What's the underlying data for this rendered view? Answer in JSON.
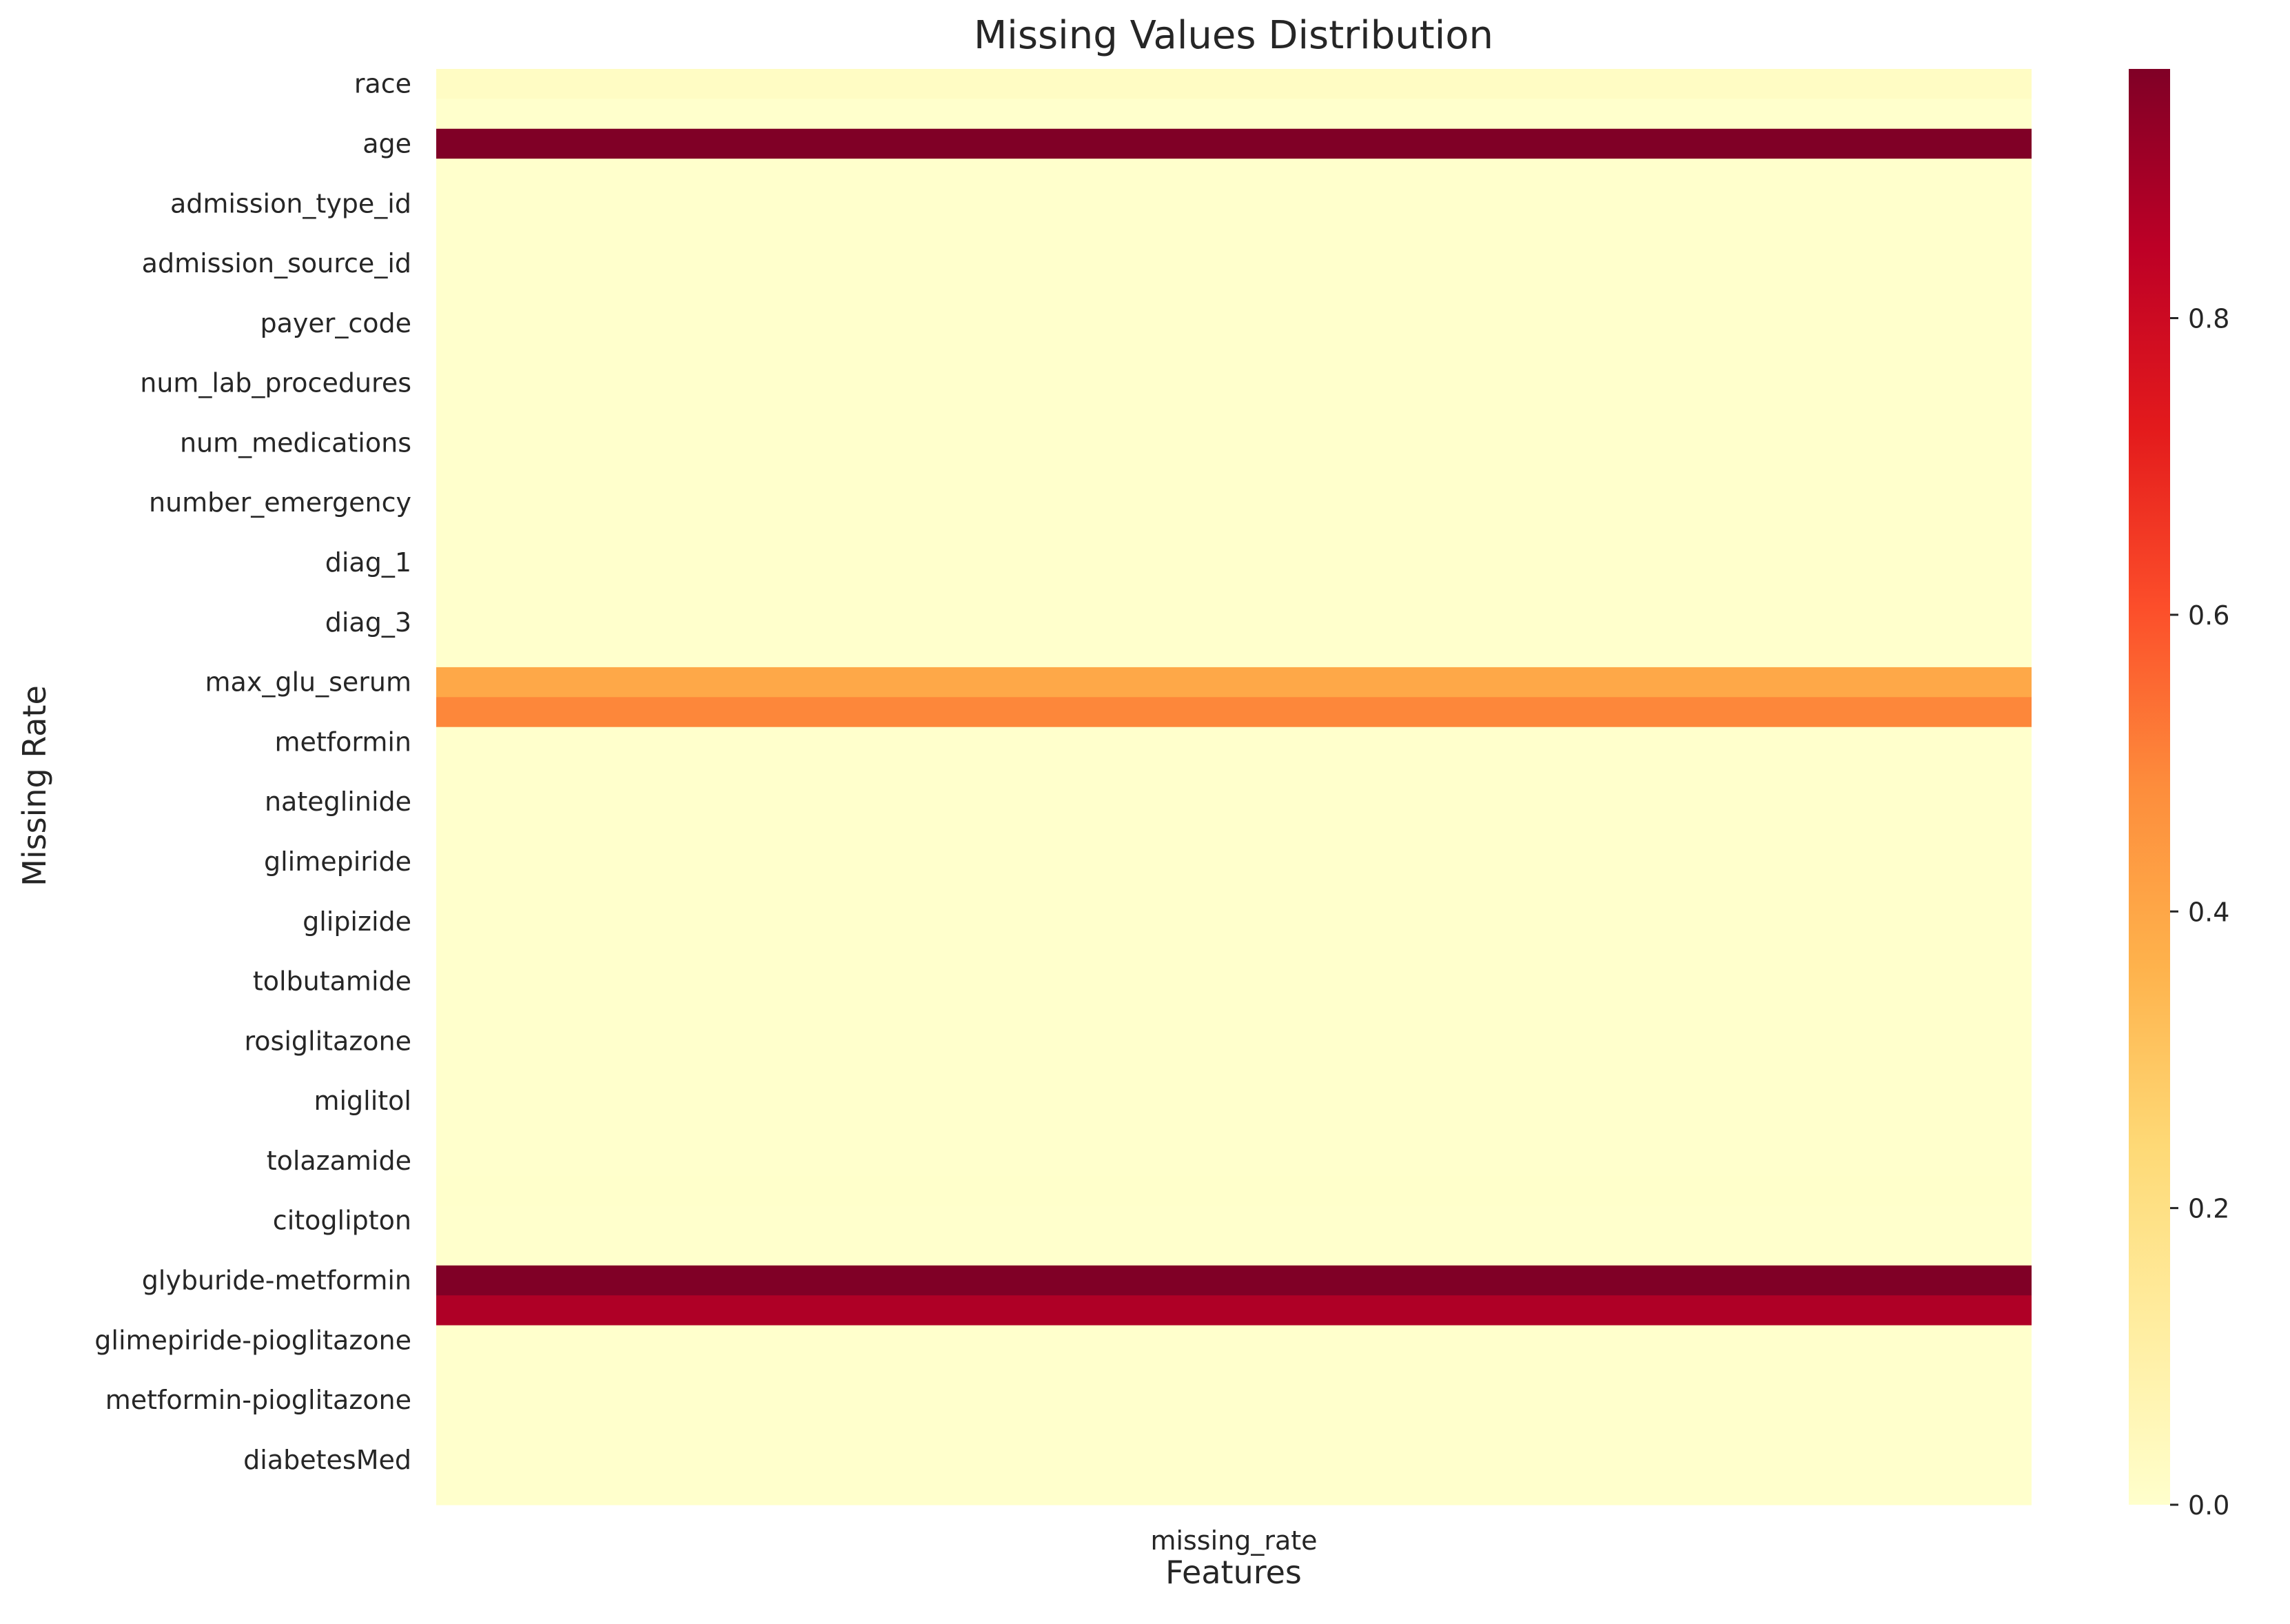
{
  "chart_data": {
    "type": "heatmap",
    "title": "Missing Values Distribution",
    "xlabel": "Features",
    "ylabel": "Missing Rate",
    "columns": [
      "missing_rate"
    ],
    "tick_labels": [
      "race",
      "age",
      "admission_type_id",
      "admission_source_id",
      "payer_code",
      "num_lab_procedures",
      "num_medications",
      "number_emergency",
      "diag_1",
      "diag_3",
      "max_glu_serum",
      "metformin",
      "nateglinide",
      "glimepiride",
      "glipizide",
      "tolbutamide",
      "rosiglitazone",
      "miglitol",
      "tolazamide",
      "citoglipton",
      "glyburide-metformin",
      "glimepiride-pioglitazone",
      "metformin-pioglitazone",
      "diabetesMed"
    ],
    "values": [
      0.0223,
      0,
      0.968,
      0,
      0,
      0,
      0,
      0,
      0,
      0,
      0,
      0,
      0,
      0,
      0,
      0,
      0,
      0,
      0,
      0,
      0.396,
      0.495,
      0,
      0,
      0,
      0,
      0,
      0,
      0,
      0,
      0,
      0,
      0,
      0.0002,
      0,
      0,
      0,
      0.0014,
      0,
      0,
      0.968,
      0.874,
      0,
      0,
      0,
      0,
      0,
      0
    ],
    "colorbar": {
      "range": [
        0,
        0.968
      ],
      "ticks": [
        0.0,
        0.2,
        0.4,
        0.6,
        0.8
      ],
      "tick_labels": [
        "0.0",
        "0.2",
        "0.4",
        "0.6",
        "0.8"
      ],
      "colormap": "YlOrRd",
      "stops": [
        "#ffffcc",
        "#ffeda0",
        "#fed976",
        "#feb24c",
        "#fd8d3c",
        "#fc4e2a",
        "#e31a1c",
        "#bd0026",
        "#800026"
      ]
    },
    "grid": false
  }
}
